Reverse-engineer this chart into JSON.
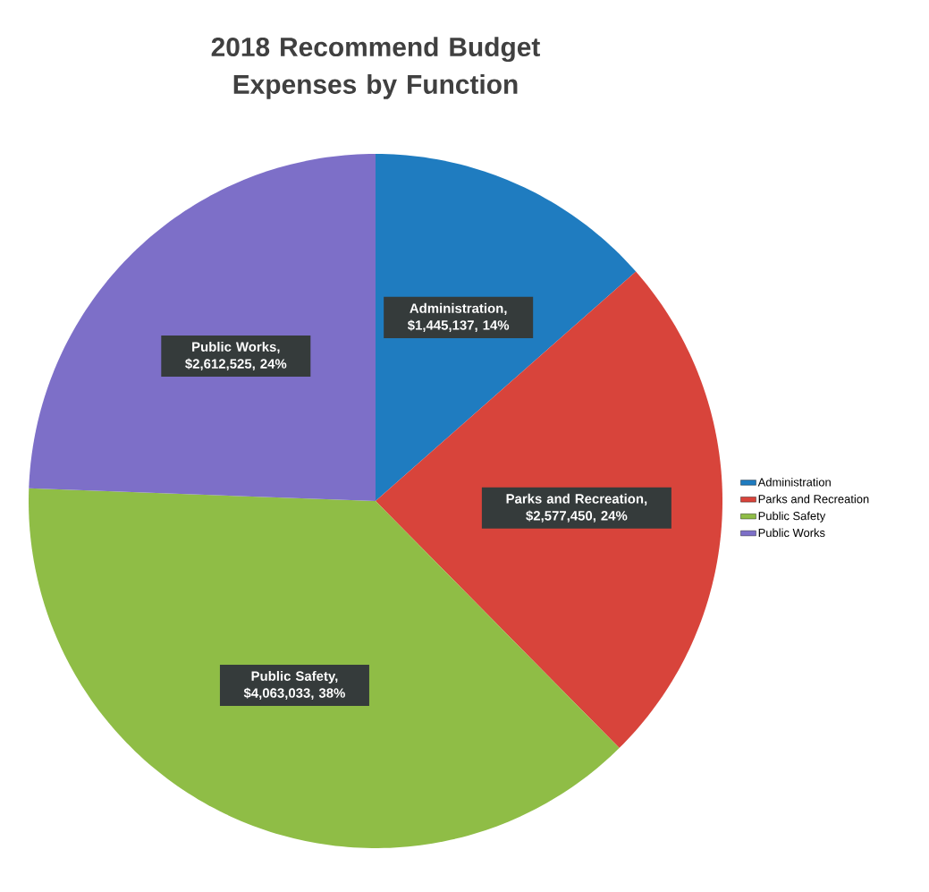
{
  "chart_data": {
    "type": "pie",
    "title": "2018 Recommend Budget Expenses by Function",
    "categories": [
      "Administration",
      "Parks and Recreation",
      "Public Safety",
      "Public Works"
    ],
    "values": [
      1445137,
      2577450,
      4063033,
      2612525
    ],
    "colors": [
      "#1f7cc0",
      "#d8443b",
      "#8fbd46",
      "#7d6fc8"
    ],
    "value_labels": [
      "Administration, $1,445,137, 14%",
      "Parks and Recreation, $2,577,450, 24%",
      "Public Safety, $4,063,033, 38%",
      "Public Works, $2,612,525, 24%"
    ],
    "legend": "right"
  }
}
